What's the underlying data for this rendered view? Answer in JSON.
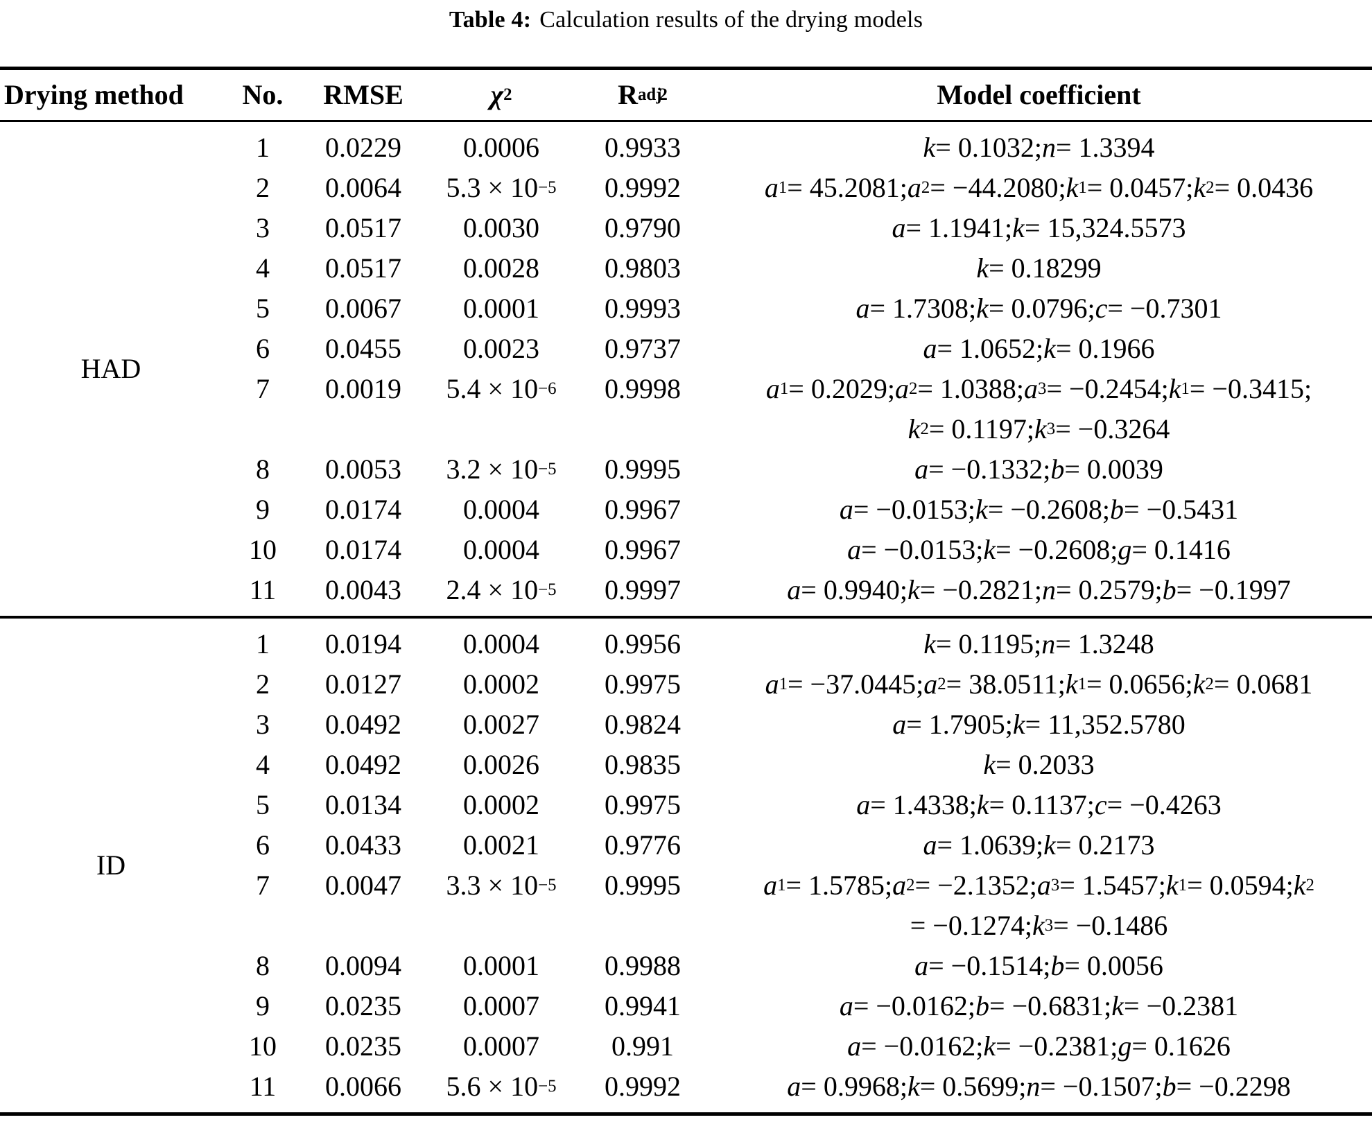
{
  "title": {
    "label": "Table 4:",
    "text": "Calculation results of the drying models"
  },
  "columns": {
    "method": "Drying method",
    "no": "No.",
    "rmse": "RMSE",
    "chi": {
      "base": "χ",
      "sup": "2"
    },
    "r": {
      "base": "R",
      "sub": "adj",
      "sup": "2"
    },
    "coeff": "Model coefficient"
  },
  "sections": [
    {
      "method": "HAD",
      "rows": [
        {
          "no": "1",
          "rmse": "0.0229",
          "chi2": "0.0006",
          "r2": "0.9933",
          "coeff": [
            "k = 0.1032; n = 1.3394"
          ]
        },
        {
          "no": "2",
          "rmse": "0.0064",
          "chi2": "5.3 × 10^−5",
          "r2": "0.9992",
          "coeff": [
            "a_1 = 45.2081; a_2 = −44.2080; k_1 = 0.0457; k_2 = 0.0436"
          ]
        },
        {
          "no": "3",
          "rmse": "0.0517",
          "chi2": "0.0030",
          "r2": "0.9790",
          "coeff": [
            "a = 1.1941; k = 15,324.5573"
          ]
        },
        {
          "no": "4",
          "rmse": "0.0517",
          "chi2": "0.0028",
          "r2": "0.9803",
          "coeff": [
            "k = 0.18299"
          ]
        },
        {
          "no": "5",
          "rmse": "0.0067",
          "chi2": "0.0001",
          "r2": "0.9993",
          "coeff": [
            "a = 1.7308; k = 0.0796; c = −0.7301"
          ]
        },
        {
          "no": "6",
          "rmse": "0.0455",
          "chi2": "0.0023",
          "r2": "0.9737",
          "coeff": [
            "a = 1.0652; k = 0.1966"
          ]
        },
        {
          "no": "7",
          "rmse": "0.0019",
          "chi2": "5.4 × 10^−6",
          "r2": "0.9998",
          "coeff": [
            "a_1 = 0.2029; a_2 = 1.0388; a_3 = −0.2454; k_1 = −0.3415;",
            "k_2 = 0.1197; k_3 = −0.3264"
          ]
        },
        {
          "no": "8",
          "rmse": "0.0053",
          "chi2": "3.2 × 10^−5",
          "r2": "0.9995",
          "coeff": [
            "a = −0.1332; b = 0.0039"
          ]
        },
        {
          "no": "9",
          "rmse": "0.0174",
          "chi2": "0.0004",
          "r2": "0.9967",
          "coeff": [
            "a = −0.0153; k = −0.2608; b = −0.5431"
          ]
        },
        {
          "no": "10",
          "rmse": "0.0174",
          "chi2": "0.0004",
          "r2": "0.9967",
          "coeff": [
            "a = −0.0153; k = −0.2608; g = 0.1416"
          ]
        },
        {
          "no": "11",
          "rmse": "0.0043",
          "chi2": "2.4 × 10^−5",
          "r2": "0.9997",
          "coeff": [
            "a = 0.9940; k = −0.2821; n = 0.2579; b = −0.1997"
          ]
        }
      ]
    },
    {
      "method": "ID",
      "rows": [
        {
          "no": "1",
          "rmse": "0.0194",
          "chi2": "0.0004",
          "r2": "0.9956",
          "coeff": [
            "k = 0.1195; n = 1.3248"
          ]
        },
        {
          "no": "2",
          "rmse": "0.0127",
          "chi2": "0.0002",
          "r2": "0.9975",
          "coeff": [
            "a_1 = −37.0445; a_2 = 38.0511; k_1 = 0.0656; k_2 = 0.0681"
          ]
        },
        {
          "no": "3",
          "rmse": "0.0492",
          "chi2": "0.0027",
          "r2": "0.9824",
          "coeff": [
            "a = 1.7905; k = 11,352.5780"
          ]
        },
        {
          "no": "4",
          "rmse": "0.0492",
          "chi2": "0.0026",
          "r2": "0.9835",
          "coeff": [
            "k = 0.2033"
          ]
        },
        {
          "no": "5",
          "rmse": "0.0134",
          "chi2": "0.0002",
          "r2": "0.9975",
          "coeff": [
            "a = 1.4338; k = 0.1137; c = −0.4263"
          ]
        },
        {
          "no": "6",
          "rmse": "0.0433",
          "chi2": "0.0021",
          "r2": "0.9776",
          "coeff": [
            "a = 1.0639; k = 0.2173"
          ]
        },
        {
          "no": "7",
          "rmse": "0.0047",
          "chi2": "3.3 × 10^−5",
          "r2": "0.9995",
          "coeff": [
            "a_1 = 1.5785; a_2 = −2.1352; a_3 = 1.5457; k_1 = 0.0594; k_2",
            "= −0.1274; k_3 = −0.1486"
          ]
        },
        {
          "no": "8",
          "rmse": "0.0094",
          "chi2": "0.0001",
          "r2": "0.9988",
          "coeff": [
            "a = −0.1514; b = 0.0056"
          ]
        },
        {
          "no": "9",
          "rmse": "0.0235",
          "chi2": "0.0007",
          "r2": "0.9941",
          "coeff": [
            "a = −0.0162; b = −0.6831; k = −0.2381"
          ]
        },
        {
          "no": "10",
          "rmse": "0.0235",
          "chi2": "0.0007",
          "r2": "0.991",
          "coeff": [
            "a = −0.0162; k = −0.2381; g = 0.1626"
          ]
        },
        {
          "no": "11",
          "rmse": "0.0066",
          "chi2": "5.6 × 10^−5",
          "r2": "0.9992",
          "coeff": [
            "a = 0.9968; k = 0.5699; n = −0.1507; b = −0.2298"
          ]
        }
      ]
    }
  ]
}
